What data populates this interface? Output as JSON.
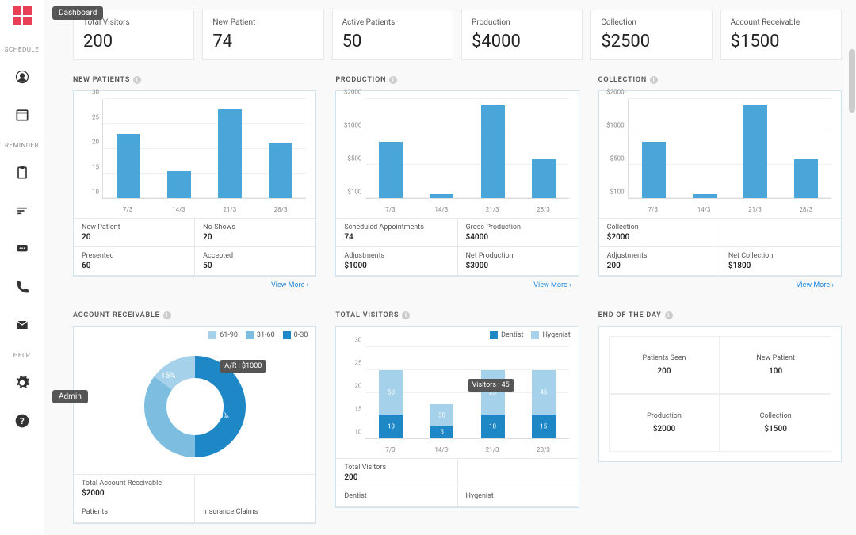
{
  "tooltips": {
    "dashboard": "Dashboard",
    "admin": "Admin"
  },
  "sidebar": {
    "sections": [
      "SCHEDULE",
      "REMINDER",
      "HELP"
    ]
  },
  "kpis": [
    {
      "label": "Total Visitors",
      "value": "200"
    },
    {
      "label": "New Patient",
      "value": "74"
    },
    {
      "label": "Active Patients",
      "value": "50"
    },
    {
      "label": "Production",
      "value": "$4000"
    },
    {
      "label": "Collection",
      "value": "$2500"
    },
    {
      "label": "Account Receivable",
      "value": "$1500"
    }
  ],
  "colors": {
    "bar": "#4aa6d8",
    "bar_light": "#a6d1ea",
    "bar_mid": "#7cbde0",
    "grid": "#f0f0f0",
    "panel_border": "#cfe4f0"
  },
  "charts": {
    "new_patients": {
      "title": "NEW PATIENTS",
      "type": "bar",
      "y_ticks": [
        10,
        15,
        20,
        25,
        30
      ],
      "ylim": [
        10,
        30
      ],
      "categories": [
        "7/3",
        "14/3",
        "21/3",
        "28/3"
      ],
      "values": [
        23,
        15.5,
        28,
        21
      ],
      "stats": [
        [
          {
            "label": "New Patient",
            "value": "20"
          },
          {
            "label": "No-Shows",
            "value": "20"
          }
        ],
        [
          {
            "label": "Presented",
            "value": "60"
          },
          {
            "label": "Accepted",
            "value": "50"
          }
        ]
      ],
      "view_more": "View More"
    },
    "production": {
      "title": "PRODUCTION",
      "type": "bar",
      "y_ticks": [
        "$100",
        "$500",
        "$1000",
        "$2000"
      ],
      "y_tick_vals": [
        100,
        500,
        1000,
        2000
      ],
      "ylim": [
        0,
        2000
      ],
      "categories": [
        "7/3",
        "14/3",
        "21/3",
        "28/3"
      ],
      "values": [
        850,
        150,
        1800,
        600
      ],
      "stats": [
        [
          {
            "label": "Scheduled Appointments",
            "value": "74"
          },
          {
            "label": "Gross Production",
            "value": "$4000"
          }
        ],
        [
          {
            "label": "Adjustments",
            "value": "$1000"
          },
          {
            "label": "Net Production",
            "value": "$3000"
          }
        ]
      ],
      "view_more": "View More"
    },
    "collection": {
      "title": "COLLECTION",
      "type": "bar",
      "y_ticks": [
        "$100",
        "$500",
        "$1000",
        "$2000"
      ],
      "y_tick_vals": [
        100,
        500,
        1000,
        2000
      ],
      "ylim": [
        0,
        2000
      ],
      "categories": [
        "7/3",
        "14/3",
        "21/3",
        "28/3"
      ],
      "values": [
        850,
        150,
        1800,
        600
      ],
      "stats": [
        [
          {
            "label": "Collection",
            "value": "$2000"
          },
          null
        ],
        [
          {
            "label": "Adjustments",
            "value": "200"
          },
          {
            "label": "Net Collection",
            "value": "$1800"
          }
        ]
      ],
      "view_more": "View More"
    },
    "account_receivable": {
      "title": "ACCOUNT RECEIVABLE",
      "type": "donut",
      "legend": [
        {
          "label": "61-90",
          "color": "#a6d1ea"
        },
        {
          "label": "31-60",
          "color": "#7cbde0"
        },
        {
          "label": "0-30",
          "color": "#1e88c7"
        }
      ],
      "slices": [
        {
          "pct": 50,
          "color": "#1e88c7",
          "label": "50%"
        },
        {
          "pct": 35,
          "color": "#7cbde0",
          "label": "35%"
        },
        {
          "pct": 15,
          "color": "#a6d1ea",
          "label": "15%"
        }
      ],
      "tooltip": "A/R  : $1000",
      "stats": [
        [
          {
            "label": "Total Account Receivable",
            "value": "$2000"
          },
          null
        ],
        [
          {
            "label": "Patients",
            "value": ""
          },
          {
            "label": "Insurance Claims",
            "value": ""
          }
        ]
      ]
    },
    "total_visitors": {
      "title": "TOTAL VISITORS",
      "type": "stacked-bar",
      "legend": [
        {
          "label": "Dentist",
          "color": "#1e88c7"
        },
        {
          "label": "Hygenist",
          "color": "#a6d1ea"
        }
      ],
      "y_ticks": [
        10,
        15,
        20,
        25,
        30
      ],
      "ylim": [
        10,
        30
      ],
      "categories": [
        "7/3",
        "14/3",
        "21/3",
        "28/3"
      ],
      "series": [
        {
          "dentist": 10,
          "hygenist": 50,
          "top": 25
        },
        {
          "dentist": 5,
          "hygenist": 30,
          "top": 17.5
        },
        {
          "dentist": 10,
          "hygenist": 25,
          "top": 25
        },
        {
          "dentist": 15,
          "hygenist": 45,
          "top": 25
        }
      ],
      "tooltip": "Visitors  : 45",
      "stats": [
        [
          {
            "label": "Total Visitors",
            "value": "200"
          },
          null
        ],
        [
          {
            "label": "Dentist",
            "value": ""
          },
          {
            "label": "Hygenist",
            "value": ""
          }
        ]
      ]
    },
    "end_of_day": {
      "title": "END OF THE DAY",
      "cells": [
        {
          "label": "Patients Seen",
          "value": "200"
        },
        {
          "label": "New Patient",
          "value": "100"
        },
        {
          "label": "Production",
          "value": "$2000"
        },
        {
          "label": "Collection",
          "value": "$1500"
        }
      ]
    }
  }
}
